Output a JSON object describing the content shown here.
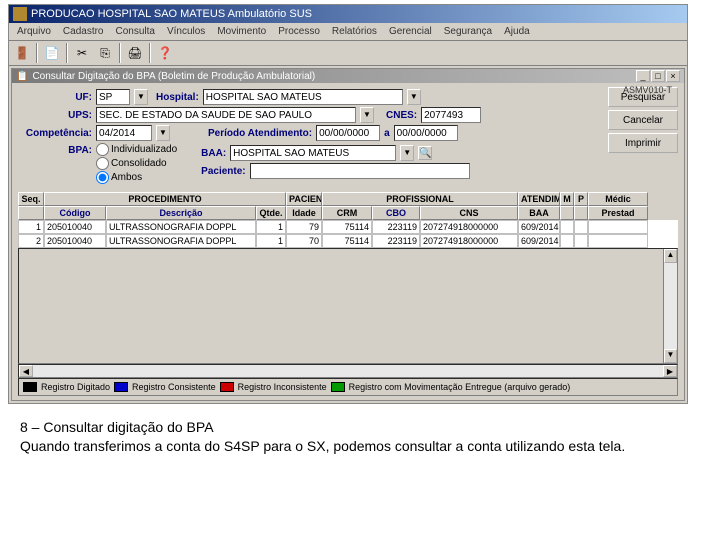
{
  "app": {
    "title": "PRODUCAO   HOSPITAL SAO MATEUS   Ambulatório SUS"
  },
  "menu": {
    "items": [
      "Arquivo",
      "Cadastro",
      "Consulta",
      "Vínculos",
      "Movimento",
      "Processo",
      "Relatórios",
      "Gerencial",
      "Segurança",
      "Ajuda"
    ]
  },
  "inner": {
    "title": "Consultar Digitação do BPA (Boletim de Produção Ambulatorial)",
    "version": "ASMV010-T"
  },
  "form": {
    "uf_label": "UF:",
    "uf_value": "SP",
    "hospital_label": "Hospital:",
    "hospital_value": "HOSPITAL SAO MATEUS",
    "ups_label": "UPS:",
    "ups_value": "SEC. DE ESTADO DA SAUDE DE SAO PAULO",
    "cnes_label": "CNES:",
    "cnes_value": "2077493",
    "competencia_label": "Competência:",
    "competencia_value": "04/2014",
    "periodo_label": "Período Atendimento:",
    "periodo_de": "00/00/0000",
    "periodo_a_label": "a",
    "periodo_a": "00/00/0000",
    "bpa_label": "BPA:",
    "bpa_options": {
      "opt1": "Individualizado",
      "opt2": "Consolidado",
      "opt3": "Ambos"
    },
    "baa_label": "BAA:",
    "baa_value": "HOSPITAL SAO MATEUS",
    "paciente_label": "Paciente:",
    "paciente_value": ""
  },
  "buttons": {
    "pesquisar": "Pesquisar",
    "cancelar": "Cancelar",
    "imprimir": "Imprimir"
  },
  "table": {
    "group_headers": {
      "seq": "Seq.",
      "proc": "PROCEDIMENTO",
      "pac": "PACIENTE",
      "prof": "PROFISSIONAL",
      "atend": "ATENDIMENTO",
      "m": "M",
      "p": "P",
      "med": "Médic"
    },
    "headers": {
      "codigo": "Código",
      "descricao": "Descrição",
      "qtde": "Qtde.",
      "idade": "Idade",
      "crm": "CRM",
      "cbo": "CBO",
      "cns": "CNS",
      "baa": "BAA",
      "m": "M",
      "p": "P",
      "prestad": "Prestad"
    },
    "rows": [
      {
        "seq": "1",
        "codigo": "205010040",
        "descricao": "ULTRASSONOGRAFIA DOPPL",
        "qtde": "1",
        "idade": "79",
        "crm": "75114",
        "cbo": "223119",
        "cns": "207274918000000",
        "baa": "609/2014",
        "m": "",
        "p": "",
        "med": ""
      },
      {
        "seq": "2",
        "codigo": "205010040",
        "descricao": "ULTRASSONOGRAFIA DOPPL",
        "qtde": "1",
        "idade": "70",
        "crm": "75114",
        "cbo": "223119",
        "cns": "207274918000000",
        "baa": "609/2014",
        "m": "",
        "p": "",
        "med": ""
      }
    ]
  },
  "legend": {
    "digitado": {
      "color": "#000000",
      "label": "Registro Digitado"
    },
    "consistente": {
      "color": "#0000cc",
      "label": "Registro Consistente"
    },
    "inconsistente": {
      "color": "#cc0000",
      "label": "Registro Inconsistente"
    },
    "movimentacao": {
      "color": "#009900",
      "label": "Registro com Movimentação Entregue (arquivo gerado)"
    }
  },
  "caption": {
    "line1": "8 – Consultar digitação do BPA",
    "line2": "Quando transferimos a conta do S4SP para o SX, podemos consultar a conta utilizando esta tela."
  }
}
